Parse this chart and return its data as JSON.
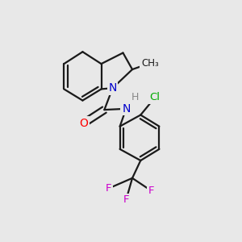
{
  "background_color": "#e8e8e8",
  "bond_color": "#1a1a1a",
  "atom_colors": {
    "N": "#0000cc",
    "O": "#ff0000",
    "Cl": "#00aa00",
    "F": "#cc00cc",
    "H": "#888888",
    "C": "#1a1a1a"
  }
}
